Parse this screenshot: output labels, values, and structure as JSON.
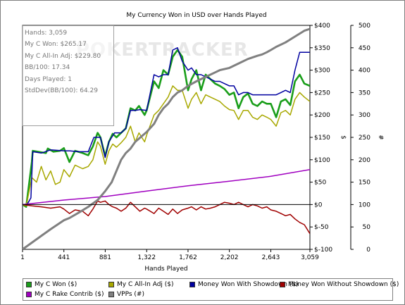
{
  "chart_data": {
    "type": "line",
    "title": "My Currency Won in USD over Hands Played",
    "xlabel": "Hands Played",
    "ylabel_left": "",
    "ylabel_right_1": "$",
    "ylabel_right_2": "#",
    "x_range": [
      1,
      3059
    ],
    "y_dollar_range": [
      -100,
      400
    ],
    "y_count_range": [
      0,
      500
    ],
    "x_ticks": [
      1,
      441,
      881,
      1322,
      1762,
      2202,
      2643,
      3059
    ],
    "x_tick_labels": [
      "1",
      "441",
      "881",
      "1,322",
      "1,762",
      "2,202",
      "2,643",
      "3,059"
    ],
    "y_dollar_ticks": [
      -100,
      -50,
      0,
      50,
      100,
      150,
      200,
      250,
      300,
      350,
      400
    ],
    "y_dollar_tick_labels": [
      "$-100",
      "$-50",
      "$0",
      "$50",
      "$100",
      "$150",
      "$200",
      "$250",
      "$300",
      "$350",
      "$400"
    ],
    "y_count_ticks": [
      0,
      50,
      100,
      150,
      200,
      250,
      300,
      350,
      400,
      450,
      500
    ],
    "y_count_tick_labels": [
      "0",
      "50",
      "100",
      "150",
      "200",
      "250",
      "300",
      "350",
      "400",
      "450",
      "500"
    ],
    "grid": false,
    "legend_position": "bottom",
    "series": [
      {
        "name": "My C Won ($)",
        "axis": "dollar",
        "color": "#1a9e1a",
        "width": 2.6,
        "points": [
          [
            1,
            0
          ],
          [
            40,
            -5
          ],
          [
            100,
            95
          ],
          [
            110,
            120
          ],
          [
            250,
            115
          ],
          [
            270,
            125
          ],
          [
            330,
            118
          ],
          [
            400,
            120
          ],
          [
            441,
            126
          ],
          [
            500,
            95
          ],
          [
            560,
            120
          ],
          [
            640,
            115
          ],
          [
            700,
            110
          ],
          [
            750,
            130
          ],
          [
            800,
            160
          ],
          [
            830,
            150
          ],
          [
            880,
            108
          ],
          [
            920,
            140
          ],
          [
            960,
            158
          ],
          [
            1000,
            150
          ],
          [
            1050,
            160
          ],
          [
            1100,
            170
          ],
          [
            1150,
            215
          ],
          [
            1200,
            210
          ],
          [
            1240,
            220
          ],
          [
            1300,
            200
          ],
          [
            1322,
            210
          ],
          [
            1400,
            275
          ],
          [
            1450,
            260
          ],
          [
            1500,
            300
          ],
          [
            1550,
            290
          ],
          [
            1600,
            330
          ],
          [
            1650,
            345
          ],
          [
            1700,
            330
          ],
          [
            1762,
            255
          ],
          [
            1800,
            280
          ],
          [
            1850,
            300
          ],
          [
            1900,
            255
          ],
          [
            1950,
            290
          ],
          [
            2000,
            280
          ],
          [
            2050,
            270
          ],
          [
            2100,
            265
          ],
          [
            2150,
            258
          ],
          [
            2202,
            245
          ],
          [
            2250,
            250
          ],
          [
            2300,
            215
          ],
          [
            2350,
            240
          ],
          [
            2400,
            248
          ],
          [
            2450,
            225
          ],
          [
            2500,
            220
          ],
          [
            2550,
            230
          ],
          [
            2600,
            225
          ],
          [
            2643,
            225
          ],
          [
            2700,
            195
          ],
          [
            2750,
            230
          ],
          [
            2800,
            235
          ],
          [
            2850,
            222
          ],
          [
            2900,
            275
          ],
          [
            2950,
            290
          ],
          [
            3000,
            270
          ],
          [
            3059,
            265
          ]
        ]
      },
      {
        "name": "My C All-In Adj ($)",
        "axis": "dollar",
        "color": "#a8a800",
        "width": 1.5,
        "points": [
          [
            1,
            0
          ],
          [
            40,
            -3
          ],
          [
            100,
            60
          ],
          [
            150,
            50
          ],
          [
            200,
            85
          ],
          [
            250,
            55
          ],
          [
            300,
            75
          ],
          [
            350,
            45
          ],
          [
            400,
            50
          ],
          [
            441,
            78
          ],
          [
            500,
            62
          ],
          [
            560,
            88
          ],
          [
            640,
            80
          ],
          [
            700,
            85
          ],
          [
            750,
            100
          ],
          [
            800,
            140
          ],
          [
            830,
            130
          ],
          [
            880,
            90
          ],
          [
            920,
            120
          ],
          [
            960,
            135
          ],
          [
            1000,
            128
          ],
          [
            1050,
            138
          ],
          [
            1100,
            150
          ],
          [
            1150,
            175
          ],
          [
            1200,
            140
          ],
          [
            1240,
            160
          ],
          [
            1300,
            140
          ],
          [
            1322,
            155
          ],
          [
            1400,
            200
          ],
          [
            1450,
            210
          ],
          [
            1500,
            225
          ],
          [
            1550,
            240
          ],
          [
            1600,
            265
          ],
          [
            1650,
            255
          ],
          [
            1700,
            255
          ],
          [
            1762,
            215
          ],
          [
            1800,
            235
          ],
          [
            1850,
            250
          ],
          [
            1900,
            225
          ],
          [
            1950,
            245
          ],
          [
            2000,
            240
          ],
          [
            2050,
            235
          ],
          [
            2100,
            230
          ],
          [
            2150,
            220
          ],
          [
            2202,
            212
          ],
          [
            2250,
            210
          ],
          [
            2300,
            190
          ],
          [
            2350,
            210
          ],
          [
            2400,
            210
          ],
          [
            2450,
            195
          ],
          [
            2500,
            190
          ],
          [
            2550,
            200
          ],
          [
            2600,
            195
          ],
          [
            2643,
            190
          ],
          [
            2700,
            175
          ],
          [
            2750,
            205
          ],
          [
            2800,
            210
          ],
          [
            2850,
            200
          ],
          [
            2900,
            235
          ],
          [
            2950,
            250
          ],
          [
            3000,
            240
          ],
          [
            3059,
            230
          ]
        ]
      },
      {
        "name": "Money Won With Showdown ($)",
        "axis": "dollar",
        "color": "#0000a0",
        "width": 1.5,
        "points": [
          [
            1,
            0
          ],
          [
            50,
            0
          ],
          [
            90,
            15
          ],
          [
            110,
            118
          ],
          [
            200,
            115
          ],
          [
            300,
            122
          ],
          [
            441,
            120
          ],
          [
            500,
            120
          ],
          [
            600,
            118
          ],
          [
            700,
            118
          ],
          [
            760,
            150
          ],
          [
            800,
            150
          ],
          [
            830,
            150
          ],
          [
            880,
            105
          ],
          [
            920,
            140
          ],
          [
            980,
            160
          ],
          [
            1050,
            160
          ],
          [
            1100,
            170
          ],
          [
            1150,
            210
          ],
          [
            1200,
            210
          ],
          [
            1250,
            212
          ],
          [
            1322,
            210
          ],
          [
            1400,
            290
          ],
          [
            1450,
            285
          ],
          [
            1500,
            290
          ],
          [
            1550,
            290
          ],
          [
            1600,
            345
          ],
          [
            1650,
            350
          ],
          [
            1700,
            320
          ],
          [
            1762,
            300
          ],
          [
            1800,
            305
          ],
          [
            1850,
            290
          ],
          [
            1900,
            290
          ],
          [
            1950,
            285
          ],
          [
            2000,
            280
          ],
          [
            2050,
            275
          ],
          [
            2100,
            275
          ],
          [
            2150,
            270
          ],
          [
            2202,
            265
          ],
          [
            2250,
            265
          ],
          [
            2300,
            245
          ],
          [
            2350,
            250
          ],
          [
            2400,
            250
          ],
          [
            2450,
            245
          ],
          [
            2500,
            245
          ],
          [
            2550,
            245
          ],
          [
            2600,
            245
          ],
          [
            2643,
            245
          ],
          [
            2700,
            245
          ],
          [
            2750,
            250
          ],
          [
            2800,
            255
          ],
          [
            2850,
            250
          ],
          [
            2900,
            300
          ],
          [
            2950,
            340
          ],
          [
            3000,
            340
          ],
          [
            3059,
            340
          ]
        ]
      },
      {
        "name": "Money Won Without Showdown ($)",
        "axis": "dollar",
        "color": "#a00000",
        "width": 1.5,
        "points": [
          [
            1,
            0
          ],
          [
            100,
            -3
          ],
          [
            200,
            -5
          ],
          [
            300,
            -8
          ],
          [
            400,
            -5
          ],
          [
            441,
            -10
          ],
          [
            500,
            -20
          ],
          [
            560,
            -12
          ],
          [
            640,
            -15
          ],
          [
            700,
            -25
          ],
          [
            750,
            -10
          ],
          [
            800,
            8
          ],
          [
            830,
            5
          ],
          [
            880,
            8
          ],
          [
            920,
            0
          ],
          [
            960,
            -5
          ],
          [
            1000,
            -8
          ],
          [
            1050,
            -15
          ],
          [
            1100,
            -8
          ],
          [
            1150,
            5
          ],
          [
            1200,
            -5
          ],
          [
            1250,
            -15
          ],
          [
            1300,
            -8
          ],
          [
            1322,
            -10
          ],
          [
            1400,
            -20
          ],
          [
            1450,
            -8
          ],
          [
            1500,
            -15
          ],
          [
            1550,
            -22
          ],
          [
            1600,
            -10
          ],
          [
            1650,
            -20
          ],
          [
            1700,
            -12
          ],
          [
            1762,
            -8
          ],
          [
            1800,
            -5
          ],
          [
            1850,
            -12
          ],
          [
            1900,
            -5
          ],
          [
            1950,
            -10
          ],
          [
            2000,
            -8
          ],
          [
            2050,
            -5
          ],
          [
            2100,
            0
          ],
          [
            2150,
            5
          ],
          [
            2202,
            3
          ],
          [
            2250,
            0
          ],
          [
            2300,
            5
          ],
          [
            2350,
            0
          ],
          [
            2400,
            -5
          ],
          [
            2450,
            0
          ],
          [
            2500,
            -3
          ],
          [
            2550,
            -8
          ],
          [
            2600,
            -5
          ],
          [
            2643,
            -12
          ],
          [
            2700,
            -15
          ],
          [
            2750,
            -20
          ],
          [
            2800,
            -25
          ],
          [
            2850,
            -22
          ],
          [
            2900,
            -32
          ],
          [
            2950,
            -40
          ],
          [
            3000,
            -45
          ],
          [
            3059,
            -65
          ]
        ]
      },
      {
        "name": "My C Rake Contrib ($)",
        "axis": "dollar",
        "color": "#a000c0",
        "width": 1.5,
        "points": [
          [
            1,
            0
          ],
          [
            441,
            10
          ],
          [
            881,
            18
          ],
          [
            1322,
            30
          ],
          [
            1762,
            42
          ],
          [
            2202,
            52
          ],
          [
            2643,
            63
          ],
          [
            3059,
            78
          ]
        ]
      },
      {
        "name": "VPPs (#)",
        "axis": "count",
        "color": "#808080",
        "width": 3,
        "points": [
          [
            1,
            0
          ],
          [
            100,
            15
          ],
          [
            200,
            30
          ],
          [
            300,
            45
          ],
          [
            441,
            65
          ],
          [
            500,
            70
          ],
          [
            600,
            82
          ],
          [
            700,
            95
          ],
          [
            800,
            110
          ],
          [
            881,
            130
          ],
          [
            950,
            150
          ],
          [
            1000,
            175
          ],
          [
            1050,
            200
          ],
          [
            1100,
            215
          ],
          [
            1150,
            225
          ],
          [
            1200,
            240
          ],
          [
            1322,
            262
          ],
          [
            1400,
            280
          ],
          [
            1450,
            300
          ],
          [
            1500,
            315
          ],
          [
            1550,
            325
          ],
          [
            1600,
            340
          ],
          [
            1650,
            350
          ],
          [
            1700,
            355
          ],
          [
            1762,
            365
          ],
          [
            1850,
            375
          ],
          [
            1950,
            385
          ],
          [
            2050,
            395
          ],
          [
            2100,
            400
          ],
          [
            2202,
            405
          ],
          [
            2300,
            415
          ],
          [
            2400,
            425
          ],
          [
            2500,
            432
          ],
          [
            2550,
            435
          ],
          [
            2600,
            440
          ],
          [
            2643,
            445
          ],
          [
            2700,
            452
          ],
          [
            2800,
            462
          ],
          [
            2900,
            475
          ],
          [
            3000,
            488
          ],
          [
            3059,
            492
          ]
        ]
      }
    ]
  },
  "stats": [
    "Hands: 3,059",
    "My C Won: $265.17",
    "My C All-In Adj: $229.80",
    "BB/100: 17.34",
    "Days Played: 1",
    "StdDev(BB/100): 64.29"
  ],
  "watermark": "POKERTRACKER",
  "legend": [
    {
      "label": "My C Won ($)",
      "color": "#1a9e1a"
    },
    {
      "label": "My C All-In Adj ($)",
      "color": "#a8a800"
    },
    {
      "label": "Money Won With Showdown ($)",
      "color": "#0000a0"
    },
    {
      "label": "Money Won Without Showdown ($)",
      "color": "#a00000"
    },
    {
      "label": "My C Rake Contrib ($)",
      "color": "#a000c0"
    },
    {
      "label": "VPPs (#)",
      "color": "#808080"
    }
  ]
}
